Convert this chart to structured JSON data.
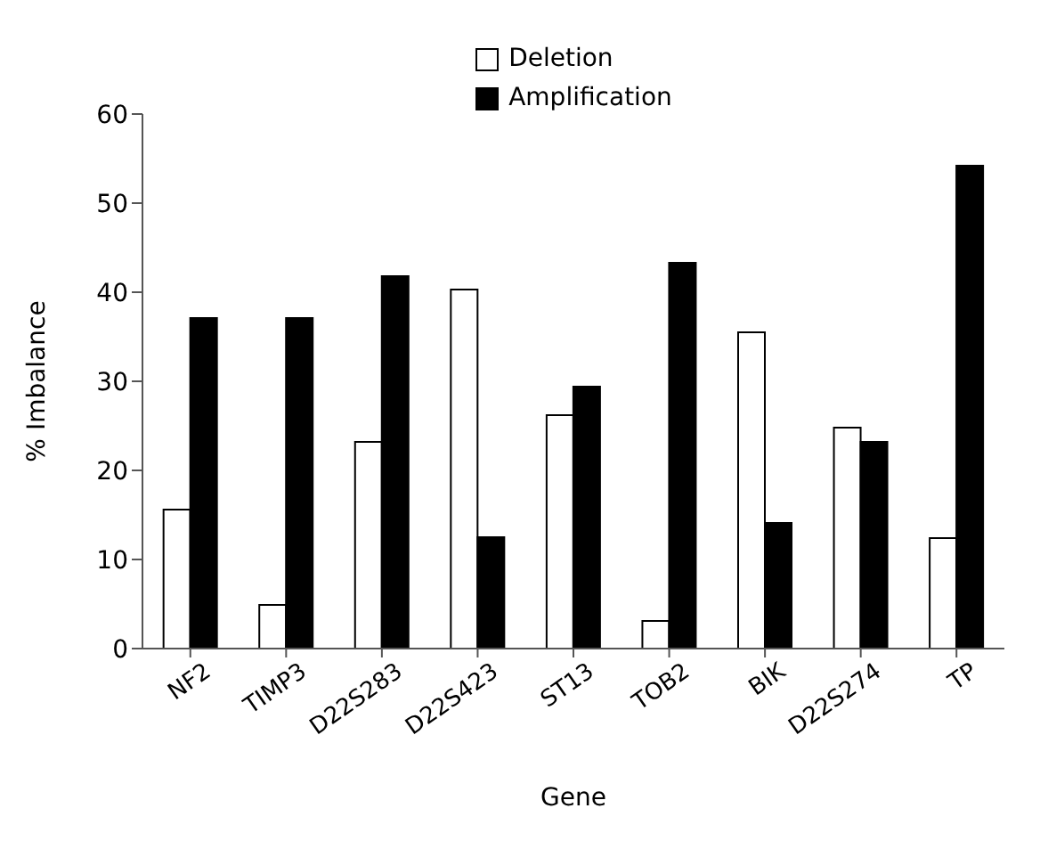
{
  "chart_data": {
    "type": "bar",
    "xlabel": "Gene",
    "ylabel": "% Imbalance",
    "categories": [
      "NF2",
      "TIMP3",
      "D22S283",
      "D22S423",
      "ST13",
      "TOB2",
      "BIK",
      "D22S274",
      "TP"
    ],
    "series": [
      {
        "name": "Deletion",
        "color": "#ffffff",
        "values": [
          15.6,
          4.9,
          23.2,
          40.3,
          26.2,
          3.1,
          35.5,
          24.8,
          12.4
        ]
      },
      {
        "name": "Amplification",
        "color": "#000000",
        "values": [
          37.1,
          37.1,
          41.8,
          12.5,
          29.4,
          43.3,
          14.1,
          23.2,
          54.2
        ]
      }
    ],
    "ylim": [
      0,
      60
    ],
    "yticks": [
      0,
      10,
      20,
      30,
      40,
      50,
      60
    ],
    "grid": false,
    "legend": "top"
  }
}
